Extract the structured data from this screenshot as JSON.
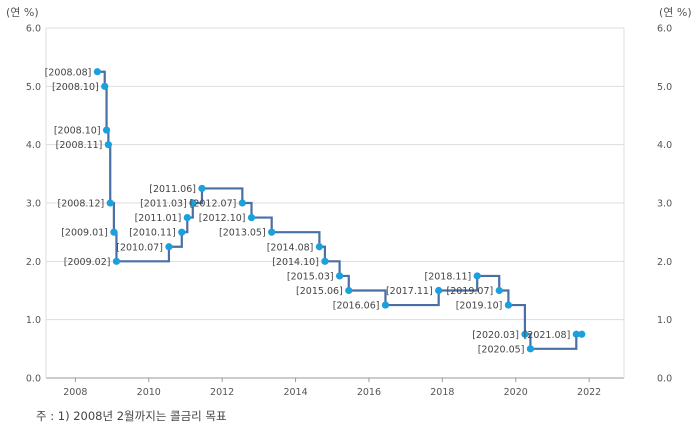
{
  "chart_data": {
    "type": "line",
    "line_shape": "step",
    "y_unit_left": "(연 %)",
    "y_unit_right": "(연 %)",
    "ylim": [
      0,
      6
    ],
    "y_ticks": [
      "0.0",
      "1.0",
      "2.0",
      "3.0",
      "4.0",
      "5.0",
      "6.0"
    ],
    "xlim": [
      2007.2,
      2022.95
    ],
    "x_ticks": [
      "2008",
      "2010",
      "2012",
      "2014",
      "2016",
      "2018",
      "2020",
      "2022"
    ],
    "grid": "horizontal",
    "colors": {
      "line": "#4a6fa5",
      "point": "#1aa0dc",
      "grid": "#dddddd",
      "axis": "#999999"
    },
    "points": [
      {
        "label": "[2008.08]",
        "x": 2008.6,
        "y": 5.25
      },
      {
        "label": "[2008.10]",
        "x": 2008.8,
        "y": 5.0
      },
      {
        "label": "[2008.10]",
        "x": 2008.85,
        "y": 4.25
      },
      {
        "label": "[2008.11]",
        "x": 2008.9,
        "y": 4.0
      },
      {
        "label": "[2008.12]",
        "x": 2008.95,
        "y": 3.0
      },
      {
        "label": "[2009.01]",
        "x": 2009.05,
        "y": 2.5
      },
      {
        "label": "[2009.02]",
        "x": 2009.12,
        "y": 2.0
      },
      {
        "label": "[2010.07]",
        "x": 2010.55,
        "y": 2.25
      },
      {
        "label": "[2010.11]",
        "x": 2010.9,
        "y": 2.5
      },
      {
        "label": "[2011.01]",
        "x": 2011.05,
        "y": 2.75
      },
      {
        "label": "[2011.03]",
        "x": 2011.2,
        "y": 3.0
      },
      {
        "label": "[2011.06]",
        "x": 2011.45,
        "y": 3.25
      },
      {
        "label": "[2012.07]",
        "x": 2012.55,
        "y": 3.0
      },
      {
        "label": "[2012.10]",
        "x": 2012.8,
        "y": 2.75
      },
      {
        "label": "[2013.05]",
        "x": 2013.35,
        "y": 2.5
      },
      {
        "label": "[2014.08]",
        "x": 2014.65,
        "y": 2.25
      },
      {
        "label": "[2014.10]",
        "x": 2014.8,
        "y": 2.0
      },
      {
        "label": "[2015.03]",
        "x": 2015.2,
        "y": 1.75
      },
      {
        "label": "[2015.06]",
        "x": 2015.45,
        "y": 1.5
      },
      {
        "label": "[2016.06]",
        "x": 2016.45,
        "y": 1.25
      },
      {
        "label": "[2017.11]",
        "x": 2017.9,
        "y": 1.5
      },
      {
        "label": "[2018.11]",
        "x": 2018.95,
        "y": 1.75
      },
      {
        "label": "[2019.07]",
        "x": 2019.55,
        "y": 1.5
      },
      {
        "label": "[2019.10]",
        "x": 2019.8,
        "y": 1.25
      },
      {
        "label": "[2020.03]",
        "x": 2020.25,
        "y": 0.75
      },
      {
        "label": "[2020.05]",
        "x": 2020.4,
        "y": 0.5
      },
      {
        "label": "[2021.08]",
        "x": 2021.65,
        "y": 0.75
      },
      {
        "label": "",
        "x": 2021.8,
        "y": 0.75
      }
    ]
  },
  "footnote": "주 : 1) 2008년 2월까지는 콜금리 목표"
}
